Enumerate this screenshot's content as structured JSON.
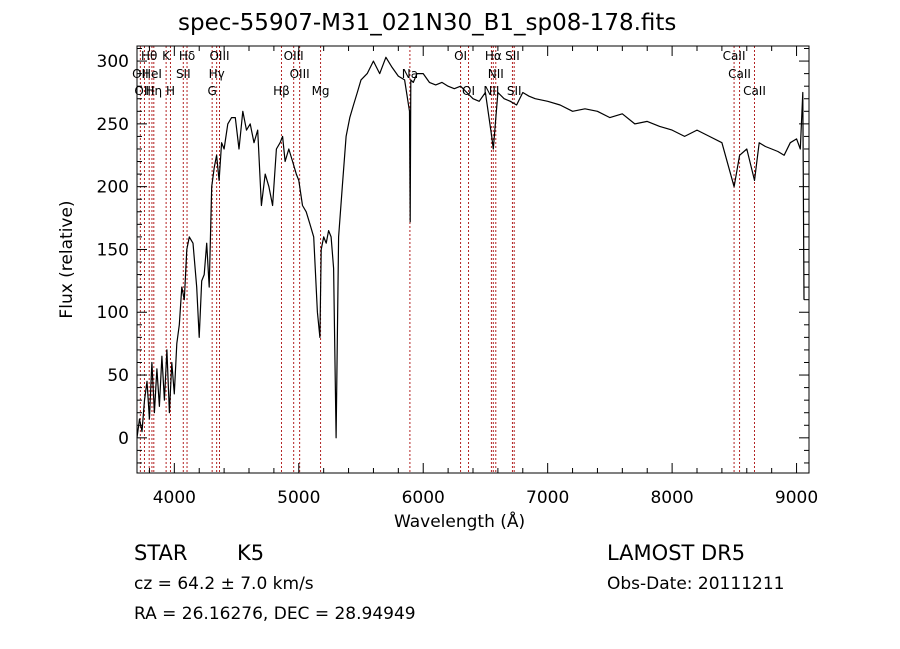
{
  "chart_data": {
    "type": "line",
    "title": "spec-55907-M31_021N30_B1_sp08-178.fits",
    "xlabel": "Wavelength (Å)",
    "ylabel": "Flux (relative)",
    "xlim": [
      3700,
      9100
    ],
    "ylim": [
      -28,
      312
    ],
    "xticks": [
      4000,
      5000,
      6000,
      7000,
      8000,
      9000
    ],
    "yticks": [
      0,
      50,
      100,
      150,
      200,
      250,
      300
    ],
    "line_color": "#000000",
    "marker_color": "#b22222",
    "series": [
      {
        "x": [
          3700,
          3720,
          3740,
          3760,
          3780,
          3800,
          3820,
          3840,
          3860,
          3880,
          3900,
          3920,
          3940,
          3960,
          3980,
          4000,
          4020,
          4040,
          4060,
          4080,
          4100,
          4120,
          4150,
          4180,
          4200,
          4220,
          4240,
          4260,
          4280,
          4300,
          4320,
          4340,
          4360,
          4380,
          4400,
          4430,
          4460,
          4490,
          4520,
          4550,
          4580,
          4610,
          4640,
          4670,
          4700,
          4730,
          4760,
          4790,
          4820,
          4850,
          4870,
          4890,
          4920,
          4950,
          4980,
          5000,
          5030,
          5060,
          5090,
          5120,
          5150,
          5170,
          5180,
          5200,
          5220,
          5240,
          5260,
          5280,
          5300,
          5320,
          5350,
          5380,
          5410,
          5440,
          5470,
          5500,
          5550,
          5600,
          5650,
          5700,
          5750,
          5800,
          5850,
          5890,
          5895,
          5900,
          5920,
          5950,
          6000,
          6050,
          6100,
          6150,
          6200,
          6250,
          6300,
          6350,
          6400,
          6450,
          6500,
          6550,
          6563,
          6600,
          6650,
          6700,
          6750,
          6800,
          6850,
          6900,
          7000,
          7100,
          7200,
          7300,
          7400,
          7500,
          7600,
          7700,
          7800,
          7900,
          8000,
          8100,
          8200,
          8300,
          8400,
          8498,
          8542,
          8600,
          8662,
          8700,
          8750,
          8800,
          8850,
          8900,
          8950,
          9000,
          9030,
          9050,
          9060
        ],
        "y": [
          0,
          15,
          5,
          30,
          45,
          15,
          60,
          20,
          55,
          25,
          65,
          30,
          70,
          20,
          60,
          35,
          75,
          90,
          120,
          110,
          150,
          160,
          155,
          120,
          80,
          125,
          130,
          155,
          120,
          200,
          215,
          225,
          205,
          235,
          230,
          250,
          255,
          255,
          230,
          260,
          245,
          250,
          235,
          245,
          185,
          210,
          200,
          185,
          230,
          235,
          240,
          220,
          230,
          220,
          210,
          205,
          185,
          180,
          170,
          160,
          100,
          80,
          150,
          160,
          155,
          165,
          160,
          135,
          0,
          160,
          200,
          240,
          255,
          265,
          275,
          285,
          290,
          300,
          290,
          303,
          295,
          288,
          285,
          260,
          172,
          285,
          283,
          290,
          290,
          283,
          281,
          283,
          280,
          278,
          280,
          275,
          270,
          268,
          275,
          240,
          230,
          275,
          270,
          268,
          265,
          275,
          272,
          270,
          268,
          265,
          260,
          262,
          260,
          255,
          258,
          250,
          252,
          248,
          245,
          240,
          245,
          240,
          235,
          200,
          225,
          230,
          205,
          235,
          232,
          230,
          228,
          225,
          235,
          238,
          230,
          275,
          110
        ]
      }
    ],
    "line_markers": [
      {
        "label": "Hθ",
        "x": 3798,
        "row": 1
      },
      {
        "label": "OII",
        "x": 3727,
        "row": 2
      },
      {
        "label": "OIII",
        "x": 3760,
        "row": 3
      },
      {
        "label": "Hη",
        "x": 3835,
        "row": 3
      },
      {
        "label": "HeI",
        "x": 3820,
        "row": 2
      },
      {
        "label": "K",
        "x": 3934,
        "row": 1
      },
      {
        "label": "H",
        "x": 3969,
        "row": 3
      },
      {
        "label": "Hδ",
        "x": 4102,
        "row": 1
      },
      {
        "label": "SII",
        "x": 4072,
        "row": 2
      },
      {
        "label": "OIII",
        "x": 4363,
        "row": 1
      },
      {
        "label": "Hγ",
        "x": 4340,
        "row": 2
      },
      {
        "label": "G",
        "x": 4304,
        "row": 3
      },
      {
        "label": "Hβ",
        "x": 4861,
        "row": 3
      },
      {
        "label": "OIII",
        "x": 4959,
        "row": 1
      },
      {
        "label": "OIII",
        "x": 5007,
        "row": 2
      },
      {
        "label": "Mg",
        "x": 5175,
        "row": 3
      },
      {
        "label": "Na",
        "x": 5893,
        "row": 2
      },
      {
        "label": "OI",
        "x": 6300,
        "row": 1
      },
      {
        "label": "OI",
        "x": 6364,
        "row": 3
      },
      {
        "label": "Hα",
        "x": 6563,
        "row": 1
      },
      {
        "label": "NII",
        "x": 6583,
        "row": 2
      },
      {
        "label": "NII",
        "x": 6548,
        "row": 3
      },
      {
        "label": "SII",
        "x": 6717,
        "row": 1
      },
      {
        "label": "SII",
        "x": 6731,
        "row": 3
      },
      {
        "label": "CaII",
        "x": 8498,
        "row": 1
      },
      {
        "label": "CaII",
        "x": 8542,
        "row": 2
      },
      {
        "label": "CaII",
        "x": 8662,
        "row": 3
      }
    ]
  },
  "info": {
    "object_class": "STAR",
    "subclass": "K5",
    "survey": "LAMOST DR5",
    "cz": "cz = 64.2 ± 7.0 km/s",
    "obs_date": "Obs-Date: 20111211",
    "coords": "RA =  26.16276, DEC =  28.94949"
  }
}
